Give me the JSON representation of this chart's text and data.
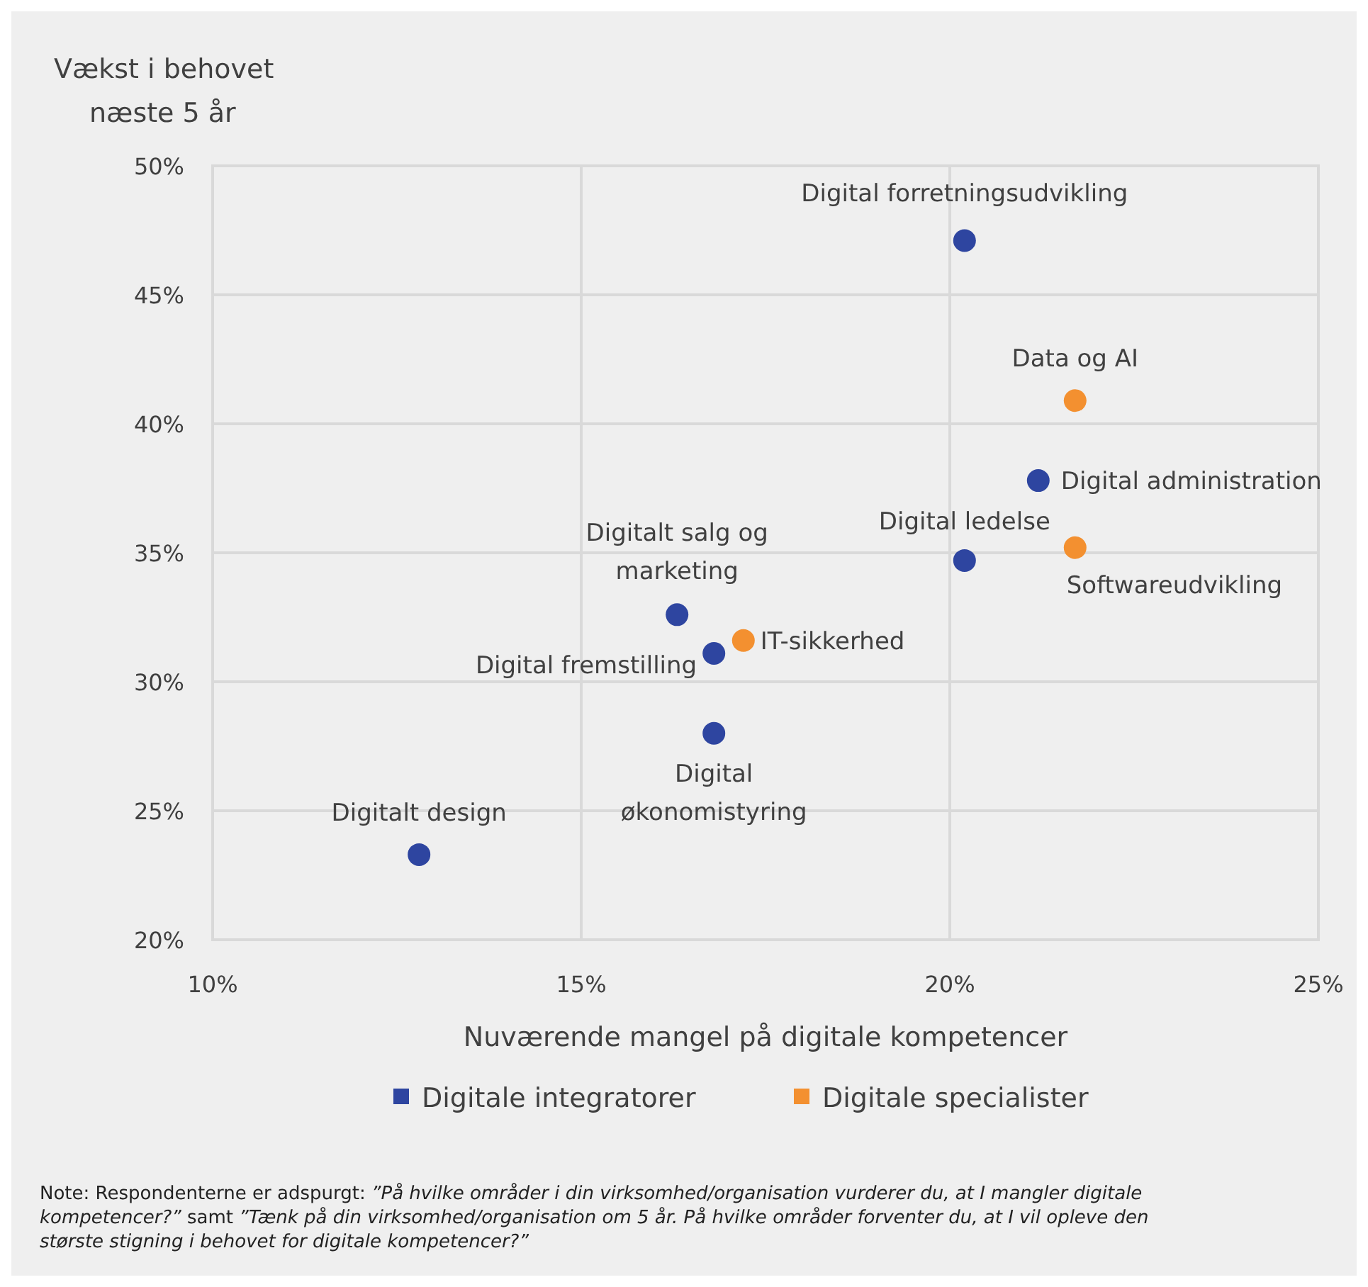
{
  "chart_data": {
    "type": "scatter",
    "ylabel": "Vækst i behovet næste 5 år",
    "xlabel": "Nuværende mangel på digitale kompetencer",
    "xlim": [
      10,
      25
    ],
    "xticks": [
      {
        "value": 10,
        "label": "10%"
      },
      {
        "value": 15,
        "label": "15%"
      },
      {
        "value": 20,
        "label": "20%"
      },
      {
        "value": 25,
        "label": "25%"
      }
    ],
    "ylim": [
      20,
      50
    ],
    "yticks": [
      {
        "value": 20,
        "label": "20%"
      },
      {
        "value": 25,
        "label": "25%"
      },
      {
        "value": 30,
        "label": "30%"
      },
      {
        "value": 35,
        "label": "35%"
      },
      {
        "value": 40,
        "label": "40%"
      },
      {
        "value": 45,
        "label": "45%"
      },
      {
        "value": 50,
        "label": "50%"
      }
    ],
    "grid": true,
    "legend": "bottom",
    "marker": "circle",
    "series": [
      {
        "name": "Digitale integratorer",
        "color": "#2e45a0",
        "x": [
          20.2,
          21.2,
          20.2,
          16.3,
          16.8,
          16.8,
          12.8
        ],
        "values": [
          47.1,
          37.8,
          34.7,
          32.6,
          31.1,
          28,
          23.3
        ]
      },
      {
        "name": "Digitale specialister",
        "color": "#f39030",
        "x": [
          21.7,
          21.7,
          17.2
        ],
        "values": [
          40.9,
          35.2,
          31.6
        ]
      }
    ],
    "annotations": [
      {
        "text": "Digital forretningsudvikling",
        "x": 20.2,
        "y": 47.1
      },
      {
        "text": "Digital administration",
        "x": 21.2,
        "y": 37.8
      },
      {
        "text": "Digital ledelse",
        "x": 20.2,
        "y": 34.7
      },
      {
        "text": "Digitalt salg og marketing",
        "x": 16.3,
        "y": 32.6
      },
      {
        "text": "Digital fremstilling",
        "x": 16.8,
        "y": 31.1
      },
      {
        "text": "Digital økonomistyring",
        "x": 16.8,
        "y": 28
      },
      {
        "text": "Digitalt design",
        "x": 12.8,
        "y": 23.3
      },
      {
        "text": "Data og AI",
        "x": 21.7,
        "y": 40.9
      },
      {
        "text": "Softwareudvikling",
        "x": 21.7,
        "y": 35.2
      },
      {
        "text": "IT-sikkerhed",
        "x": 17.2,
        "y": 31.6
      },
      "Note: Respondenterne er adspurgt: ”På hvilke områder i din virksomhed/organisation vurderer du, at I mangler digitale kompetencer?” samt ”Tænk på din virksomhed/organisation om 5 år. På hvilke områder forventer du, at I vil opleve den største stigning i behovet for digitale kompetencer?”"
    ]
  }
}
